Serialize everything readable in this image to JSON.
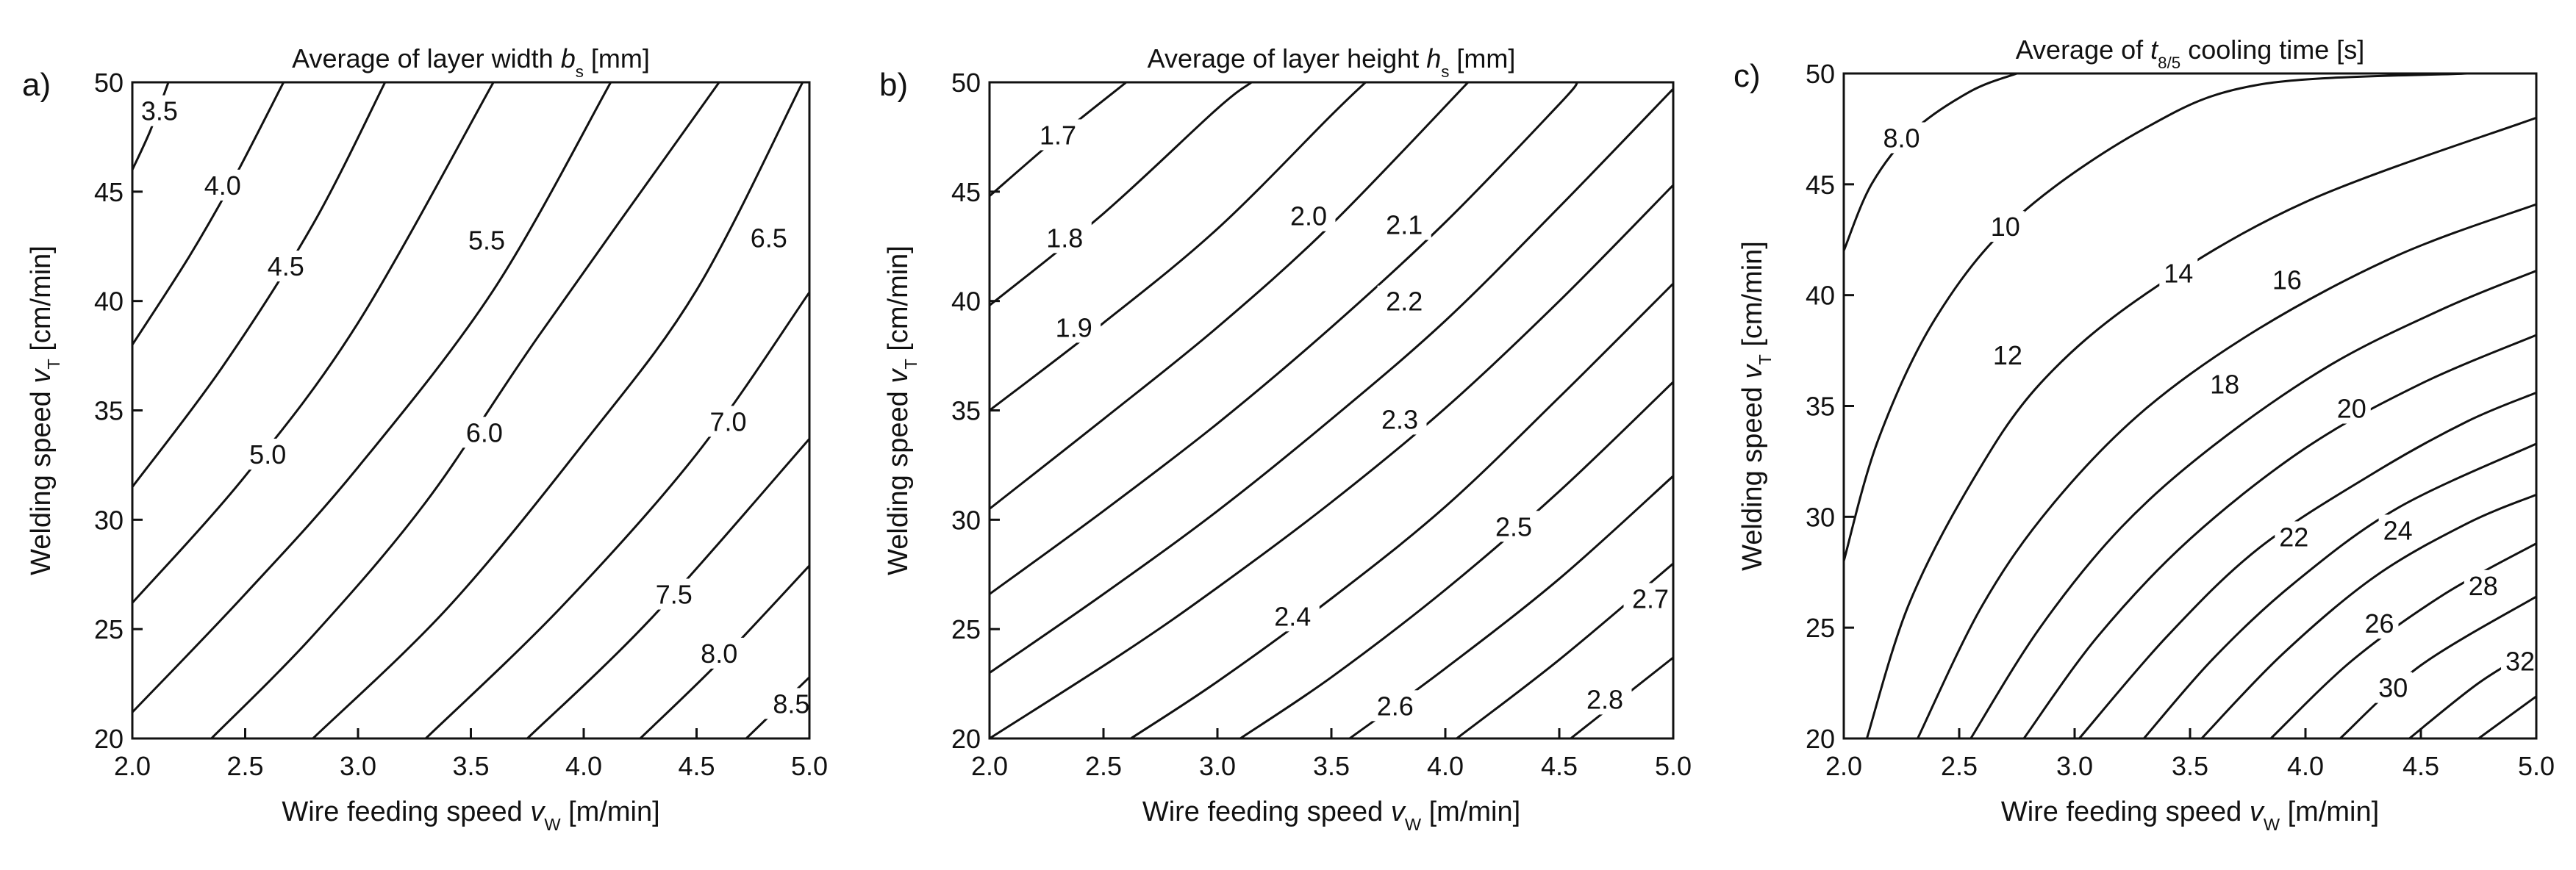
{
  "chart_data": [
    {
      "type": "contour",
      "panel": "a)",
      "title": {
        "main": "Average of layer width ",
        "symbol": "b",
        "sub": "s",
        "unit": " [mm]"
      },
      "xlabel": {
        "main": "Wire feeding speed ",
        "symbol": "v",
        "sub": "W",
        "unit": " [m/min]"
      },
      "ylabel": {
        "main": "Welding speed ",
        "symbol": "v",
        "sub": "T",
        "unit": " [cm/min]"
      },
      "xlim": [
        2.0,
        5.0
      ],
      "ylim": [
        20,
        50
      ],
      "xticks": [
        "2.0",
        "2.5",
        "3.0",
        "3.5",
        "4.0",
        "4.5",
        "5.0"
      ],
      "yticks": [
        "20",
        "25",
        "30",
        "35",
        "40",
        "45",
        "50"
      ],
      "contours": [
        {
          "label": "3.5",
          "points": [
            [
              2.0,
              46.0
            ],
            [
              2.08,
              47.8
            ],
            [
              2.16,
              50.0
            ]
          ],
          "label_at": [
            2.12,
            48.7
          ]
        },
        {
          "label": "4.0",
          "points": [
            [
              2.0,
              38.0
            ],
            [
              2.25,
              42.0
            ],
            [
              2.45,
              45.6
            ],
            [
              2.67,
              50.0
            ]
          ],
          "label_at": [
            2.4,
            45.3
          ]
        },
        {
          "label": "4.5",
          "points": [
            [
              2.0,
              31.5
            ],
            [
              2.4,
              37.0
            ],
            [
              2.8,
              43.5
            ],
            [
              3.12,
              50.0
            ]
          ],
          "label_at": [
            2.68,
            41.6
          ]
        },
        {
          "label": "5.0",
          "points": [
            [
              2.0,
              26.2
            ],
            [
              2.5,
              32.0
            ],
            [
              3.0,
              39.0
            ],
            [
              3.6,
              50.0
            ]
          ],
          "label_at": [
            2.6,
            33.0
          ]
        },
        {
          "label": "5.5",
          "points": [
            [
              2.0,
              21.2
            ],
            [
              2.5,
              26.6
            ],
            [
              3.0,
              32.4
            ],
            [
              3.6,
              40.5
            ],
            [
              4.12,
              50.0
            ]
          ],
          "label_at": [
            3.57,
            42.8
          ]
        },
        {
          "label": "6.0",
          "points": [
            [
              2.35,
              20.0
            ],
            [
              2.8,
              24.7
            ],
            [
              3.3,
              30.8
            ],
            [
              3.8,
              38.4
            ],
            [
              4.6,
              50.0
            ]
          ],
          "label_at": [
            3.56,
            34.0
          ]
        },
        {
          "label": "6.5",
          "points": [
            [
              2.8,
              20.0
            ],
            [
              3.4,
              26.0
            ],
            [
              4.0,
              33.5
            ],
            [
              4.5,
              40.5
            ],
            [
              4.97,
              50.0
            ]
          ],
          "label_at": [
            4.82,
            42.9
          ]
        },
        {
          "label": "7.0",
          "points": [
            [
              3.3,
              20.0
            ],
            [
              3.9,
              26.0
            ],
            [
              4.5,
              33.0
            ],
            [
              5.0,
              40.4
            ]
          ],
          "label_at": [
            4.64,
            34.5
          ]
        },
        {
          "label": "7.5",
          "points": [
            [
              3.75,
              20.0
            ],
            [
              4.3,
              25.5
            ],
            [
              5.0,
              33.7
            ]
          ],
          "label_at": [
            4.4,
            26.6
          ]
        },
        {
          "label": "8.0",
          "points": [
            [
              4.25,
              20.0
            ],
            [
              4.6,
              23.5
            ],
            [
              5.0,
              27.9
            ]
          ],
          "label_at": [
            4.6,
            23.9
          ]
        },
        {
          "label": "8.5",
          "points": [
            [
              4.72,
              20.0
            ],
            [
              5.0,
              22.8
            ]
          ],
          "label_at": [
            4.92,
            21.6
          ]
        }
      ]
    },
    {
      "type": "contour",
      "panel": "b)",
      "title": {
        "main": "Average of layer height ",
        "symbol": "h",
        "sub": "s",
        "unit": " [mm]"
      },
      "xlabel": {
        "main": "Wire feeding speed ",
        "symbol": "v",
        "sub": "W",
        "unit": " [m/min]"
      },
      "ylabel": {
        "main": "Welding speed ",
        "symbol": "v",
        "sub": "T",
        "unit": " [cm/min]"
      },
      "xlim": [
        2.0,
        5.0
      ],
      "ylim": [
        20,
        50
      ],
      "xticks": [
        "2.0",
        "2.5",
        "3.0",
        "3.5",
        "4.0",
        "4.5",
        "5.0"
      ],
      "yticks": [
        "20",
        "25",
        "30",
        "35",
        "40",
        "45",
        "50"
      ],
      "contours": [
        {
          "label": "1.7",
          "points": [
            [
              2.0,
              44.8
            ],
            [
              2.3,
              47.5
            ],
            [
              2.6,
              50.0
            ]
          ],
          "label_at": [
            2.3,
            47.6
          ]
        },
        {
          "label": "1.8",
          "points": [
            [
              2.0,
              39.8
            ],
            [
              2.5,
              44.0
            ],
            [
              3.0,
              48.8
            ],
            [
              3.15,
              50.0
            ]
          ],
          "label_at": [
            2.33,
            42.9
          ]
        },
        {
          "label": "1.9",
          "points": [
            [
              2.0,
              35.0
            ],
            [
              2.5,
              39.0
            ],
            [
              3.0,
              43.3
            ],
            [
              3.5,
              48.5
            ],
            [
              3.65,
              50.0
            ]
          ],
          "label_at": [
            2.37,
            38.8
          ]
        },
        {
          "label": "2.0",
          "points": [
            [
              2.0,
              30.5
            ],
            [
              2.5,
              34.6
            ],
            [
              3.0,
              38.8
            ],
            [
              3.5,
              43.5
            ],
            [
              4.1,
              50.0
            ]
          ],
          "label_at": [
            3.4,
            43.9
          ]
        },
        {
          "label": "2.1",
          "points": [
            [
              2.0,
              26.6
            ],
            [
              2.5,
              30.4
            ],
            [
              3.0,
              34.4
            ],
            [
              3.5,
              38.8
            ],
            [
              4.0,
              43.6
            ],
            [
              4.5,
              49.0
            ],
            [
              4.58,
              50.0
            ]
          ],
          "label_at": [
            3.82,
            43.5
          ]
        },
        {
          "label": "2.2",
          "points": [
            [
              2.0,
              23.0
            ],
            [
              2.5,
              26.6
            ],
            [
              3.0,
              30.4
            ],
            [
              3.5,
              34.6
            ],
            [
              4.0,
              39.1
            ],
            [
              4.5,
              44.3
            ],
            [
              5.0,
              49.7
            ]
          ],
          "label_at": [
            3.82,
            40.0
          ]
        },
        {
          "label": "2.3",
          "points": [
            [
              2.0,
              20.0
            ],
            [
              2.6,
              24.0
            ],
            [
              3.0,
              26.9
            ],
            [
              3.5,
              30.8
            ],
            [
              4.0,
              35.1
            ],
            [
              4.5,
              40.0
            ],
            [
              5.0,
              45.3
            ]
          ],
          "label_at": [
            3.8,
            34.6
          ]
        },
        {
          "label": "2.4",
          "points": [
            [
              2.62,
              20.0
            ],
            [
              3.0,
              22.6
            ],
            [
              3.5,
              26.4
            ],
            [
              4.0,
              30.6
            ],
            [
              4.5,
              35.6
            ],
            [
              5.0,
              40.8
            ]
          ],
          "label_at": [
            3.33,
            25.6
          ]
        },
        {
          "label": "2.5",
          "points": [
            [
              3.1,
              20.0
            ],
            [
              3.5,
              22.8
            ],
            [
              4.0,
              26.8
            ],
            [
              4.5,
              31.3
            ],
            [
              5.0,
              36.3
            ]
          ],
          "label_at": [
            4.3,
            29.7
          ]
        },
        {
          "label": "2.6",
          "points": [
            [
              3.58,
              20.0
            ],
            [
              4.0,
              23.2
            ],
            [
              4.5,
              27.3
            ],
            [
              5.0,
              32.0
            ]
          ],
          "label_at": [
            3.78,
            21.5
          ]
        },
        {
          "label": "2.7",
          "points": [
            [
              4.05,
              20.0
            ],
            [
              4.5,
              23.6
            ],
            [
              5.0,
              28.0
            ]
          ],
          "label_at": [
            4.9,
            26.4
          ]
        },
        {
          "label": "2.8",
          "points": [
            [
              4.55,
              20.0
            ],
            [
              5.0,
              23.7
            ]
          ],
          "label_at": [
            4.7,
            21.8
          ]
        }
      ]
    },
    {
      "type": "contour",
      "panel": "c)",
      "title": {
        "main": "Average of ",
        "symbol": "t",
        "sub": "8/5",
        "unit": " cooling time [s]"
      },
      "xlabel": {
        "main": "Wire feeding speed ",
        "symbol": "v",
        "sub": "W",
        "unit": " [m/min]"
      },
      "ylabel": {
        "main": "Welding speed ",
        "symbol": "v",
        "sub": "T",
        "unit": " [cm/min]"
      },
      "xlim": [
        2.0,
        5.0
      ],
      "ylim": [
        20,
        50
      ],
      "xticks": [
        "2.0",
        "2.5",
        "3.0",
        "3.5",
        "4.0",
        "4.5",
        "5.0"
      ],
      "yticks": [
        "20",
        "25",
        "30",
        "35",
        "40",
        "45",
        "50"
      ],
      "contours": [
        {
          "label": "8.0",
          "points": [
            [
              2.0,
              42.0
            ],
            [
              2.12,
              45.0
            ],
            [
              2.3,
              47.4
            ],
            [
              2.55,
              49.2
            ],
            [
              2.75,
              50.0
            ]
          ],
          "label_at": [
            2.25,
            47.1
          ]
        },
        {
          "label": "10",
          "points": [
            [
              2.0,
              28.0
            ],
            [
              2.15,
              33.5
            ],
            [
              2.4,
              39.0
            ],
            [
              2.75,
              43.5
            ],
            [
              3.3,
              47.5
            ],
            [
              3.8,
              49.5
            ],
            [
              4.7,
              50.0
            ]
          ],
          "label_at": [
            2.7,
            43.1
          ]
        },
        {
          "label": "12",
          "points": [
            [
              2.1,
              20.0
            ],
            [
              2.28,
              26.0
            ],
            [
              2.55,
              31.5
            ],
            [
              2.85,
              36.0
            ],
            [
              3.3,
              40.0
            ],
            [
              4.0,
              44.2
            ],
            [
              5.0,
              48.0
            ]
          ],
          "label_at": [
            2.71,
            37.3
          ]
        },
        {
          "label": "14",
          "points": [
            [
              2.32,
              20.0
            ],
            [
              2.6,
              26.0
            ],
            [
              2.9,
              30.5
            ],
            [
              3.3,
              34.8
            ],
            [
              3.8,
              38.5
            ],
            [
              4.4,
              41.8
            ],
            [
              5.0,
              44.1
            ]
          ],
          "label_at": [
            3.45,
            41.0
          ]
        },
        {
          "label": "16",
          "points": [
            [
              2.55,
              20.0
            ],
            [
              2.85,
              25.0
            ],
            [
              3.2,
              29.5
            ],
            [
              3.6,
              33.2
            ],
            [
              4.1,
              36.8
            ],
            [
              4.6,
              39.4
            ],
            [
              5.0,
              41.1
            ]
          ],
          "label_at": [
            3.92,
            40.7
          ]
        },
        {
          "label": "18",
          "points": [
            [
              2.78,
              20.0
            ],
            [
              3.1,
              24.6
            ],
            [
              3.5,
              29.0
            ],
            [
              4.0,
              33.1
            ],
            [
              4.5,
              36.0
            ],
            [
              5.0,
              38.2
            ]
          ],
          "label_at": [
            3.65,
            36.0
          ]
        },
        {
          "label": "20",
          "points": [
            [
              3.02,
              20.0
            ],
            [
              3.4,
              24.6
            ],
            [
              3.8,
              28.6
            ],
            [
              4.3,
              32.0
            ],
            [
              4.7,
              34.3
            ],
            [
              5.0,
              35.6
            ]
          ],
          "label_at": [
            4.2,
            34.9
          ]
        },
        {
          "label": "22",
          "points": [
            [
              3.3,
              20.0
            ],
            [
              3.6,
              23.6
            ],
            [
              3.95,
              27.0
            ],
            [
              4.4,
              30.4
            ],
            [
              5.0,
              33.3
            ]
          ],
          "label_at": [
            3.95,
            29.1
          ]
        },
        {
          "label": "24",
          "points": [
            [
              3.55,
              20.0
            ],
            [
              3.9,
              23.8
            ],
            [
              4.3,
              27.3
            ],
            [
              4.7,
              29.7
            ],
            [
              5.0,
              31.0
            ]
          ],
          "label_at": [
            4.4,
            29.4
          ]
        },
        {
          "label": "26",
          "points": [
            [
              3.85,
              20.0
            ],
            [
              4.2,
              23.5
            ],
            [
              4.6,
              26.5
            ],
            [
              5.0,
              28.8
            ]
          ],
          "label_at": [
            4.32,
            25.2
          ]
        },
        {
          "label": "28",
          "points": [
            [
              4.15,
              20.0
            ],
            [
              4.5,
              23.3
            ],
            [
              5.0,
              26.4
            ]
          ],
          "label_at": [
            4.77,
            26.9
          ]
        },
        {
          "label": "30",
          "points": [
            [
              4.45,
              20.0
            ],
            [
              4.75,
              22.5
            ],
            [
              5.0,
              24.1
            ]
          ],
          "label_at": [
            4.38,
            22.3
          ]
        },
        {
          "label": "32",
          "points": [
            [
              4.75,
              20.0
            ],
            [
              5.0,
              21.9
            ]
          ],
          "label_at": [
            4.93,
            23.5
          ]
        }
      ]
    }
  ]
}
